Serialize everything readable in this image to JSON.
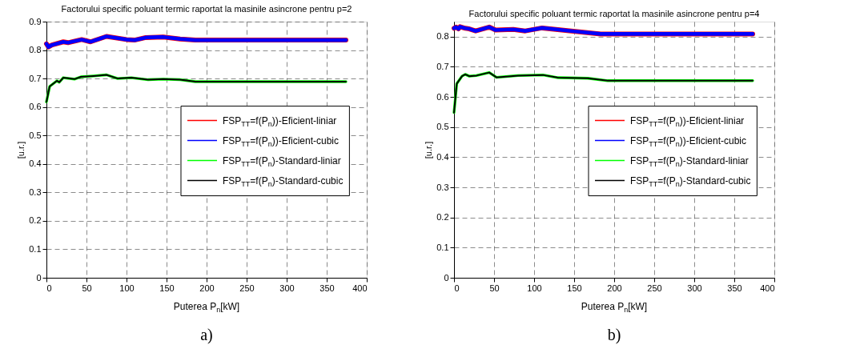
{
  "chart_data": [
    {
      "type": "line",
      "title": "Factorului specific poluant termic raportat la masinile asincrone pentru p=2",
      "xlabel": "Puterea P$_{n}$[kW]",
      "ylabel": "[u.r.]",
      "xlim": [
        0,
        400
      ],
      "xticks": [
        0,
        50,
        100,
        150,
        200,
        250,
        300,
        350,
        400
      ],
      "ylim": [
        0,
        0.9
      ],
      "yticks": [
        0,
        0.1,
        0.2,
        0.3,
        0.4,
        0.5,
        0.6,
        0.7,
        0.8,
        0.9
      ],
      "grid": true,
      "legend": "right",
      "line_style": "solid",
      "annotations": [
        "a)"
      ],
      "series": [
        {
          "name": "FSP$_{TT}$=f(P$_{n}$))-Eficient-liniar",
          "color": "#ff0000",
          "x": [
            0,
            2.5,
            7,
            21,
            27,
            44,
            55,
            75,
            100,
            110,
            124,
            146,
            167,
            186,
            250,
            300,
            374
          ],
          "values": [
            0.822,
            0.811,
            0.818,
            0.829,
            0.826,
            0.837,
            0.829,
            0.848,
            0.837,
            0.835,
            0.844,
            0.846,
            0.839,
            0.835,
            0.835,
            0.835,
            0.835
          ]
        },
        {
          "name": "FSP$_{TT}$=f(P$_{n}$))-Eficient-cubic",
          "color": "#0000ff",
          "x": [
            0,
            2.5,
            7,
            21,
            27,
            44,
            55,
            75,
            100,
            110,
            124,
            146,
            167,
            186,
            250,
            300,
            374
          ],
          "values": [
            0.822,
            0.811,
            0.818,
            0.829,
            0.826,
            0.837,
            0.829,
            0.848,
            0.837,
            0.835,
            0.844,
            0.846,
            0.839,
            0.835,
            0.835,
            0.835,
            0.835
          ]
        },
        {
          "name": "FSP$_{TT}$=f(P$_{n}$)-Standard-liniar",
          "color": "#00ff00",
          "x": [
            0,
            4,
            13,
            16,
            21,
            35,
            43,
            59,
            75,
            89,
            106,
            127,
            146,
            167,
            186,
            250,
            300,
            374
          ],
          "values": [
            0.618,
            0.672,
            0.692,
            0.687,
            0.703,
            0.698,
            0.706,
            0.709,
            0.713,
            0.7,
            0.703,
            0.696,
            0.698,
            0.696,
            0.689,
            0.689,
            0.689,
            0.689
          ]
        },
        {
          "name": "FSP$_{TT}$=f(P$_{n}$)-Standard-cubic",
          "color": "#000000",
          "x": [
            0,
            4,
            13,
            16,
            21,
            35,
            43,
            59,
            75,
            89,
            106,
            127,
            146,
            167,
            186,
            250,
            300,
            374
          ],
          "values": [
            0.618,
            0.672,
            0.692,
            0.687,
            0.703,
            0.698,
            0.706,
            0.709,
            0.713,
            0.7,
            0.703,
            0.696,
            0.698,
            0.696,
            0.689,
            0.689,
            0.689,
            0.689
          ]
        }
      ]
    },
    {
      "type": "line",
      "title": "Factorului specific poluant termic raportat la masinile asincrone pentru p=4",
      "xlabel": "Puterea P$_{n}$[kW]",
      "ylabel": "[u.r.]",
      "xlim": [
        0,
        400
      ],
      "xticks": [
        0,
        50,
        100,
        150,
        200,
        250,
        300,
        350,
        400
      ],
      "ylim": [
        0,
        0.85
      ],
      "yticks": [
        0,
        0.1,
        0.2,
        0.3,
        0.4,
        0.5,
        0.6,
        0.7,
        0.8
      ],
      "grid": true,
      "legend": "right",
      "line_style": "solid",
      "annotations": [
        "b)"
      ],
      "series": [
        {
          "name": "FSP$_{TT}$=f(P$_{n}$))-Eficient-liniar",
          "color": "#ff0000",
          "x": [
            0,
            2.5,
            5.6,
            7.5,
            14,
            19,
            27,
            44,
            52,
            74,
            89,
            110,
            149,
            183,
            250,
            300,
            373
          ],
          "values": [
            0.828,
            0.832,
            0.826,
            0.833,
            0.828,
            0.826,
            0.819,
            0.832,
            0.822,
            0.824,
            0.819,
            0.829,
            0.818,
            0.809,
            0.809,
            0.809,
            0.809
          ]
        },
        {
          "name": "FSP$_{TT}$=f(P$_{n}$))-Eficient-cubic",
          "color": "#0000ff",
          "x": [
            0,
            2.5,
            5.6,
            7.5,
            14,
            19,
            27,
            44,
            52,
            74,
            89,
            110,
            149,
            183,
            250,
            300,
            373
          ],
          "values": [
            0.828,
            0.832,
            0.826,
            0.833,
            0.828,
            0.826,
            0.819,
            0.832,
            0.822,
            0.824,
            0.819,
            0.829,
            0.818,
            0.809,
            0.809,
            0.809,
            0.809
          ]
        },
        {
          "name": "FSP$_{TT}$=f(P$_{n}$)-Standard-liniar",
          "color": "#00ff00",
          "x": [
            0,
            3.4,
            10,
            14,
            19,
            28,
            44,
            53,
            80,
            111,
            130,
            167,
            192,
            250,
            300,
            373
          ],
          "values": [
            0.548,
            0.644,
            0.669,
            0.675,
            0.669,
            0.671,
            0.681,
            0.665,
            0.671,
            0.673,
            0.664,
            0.662,
            0.654,
            0.654,
            0.654,
            0.654
          ]
        },
        {
          "name": "FSP$_{TT}$=f(P$_{n}$)-Standard-cubic",
          "color": "#000000",
          "x": [
            0,
            3.4,
            10,
            14,
            19,
            28,
            44,
            53,
            80,
            111,
            130,
            167,
            192,
            250,
            300,
            373
          ],
          "values": [
            0.548,
            0.644,
            0.669,
            0.675,
            0.669,
            0.671,
            0.681,
            0.665,
            0.671,
            0.673,
            0.664,
            0.662,
            0.654,
            0.654,
            0.654,
            0.654
          ]
        }
      ]
    }
  ]
}
